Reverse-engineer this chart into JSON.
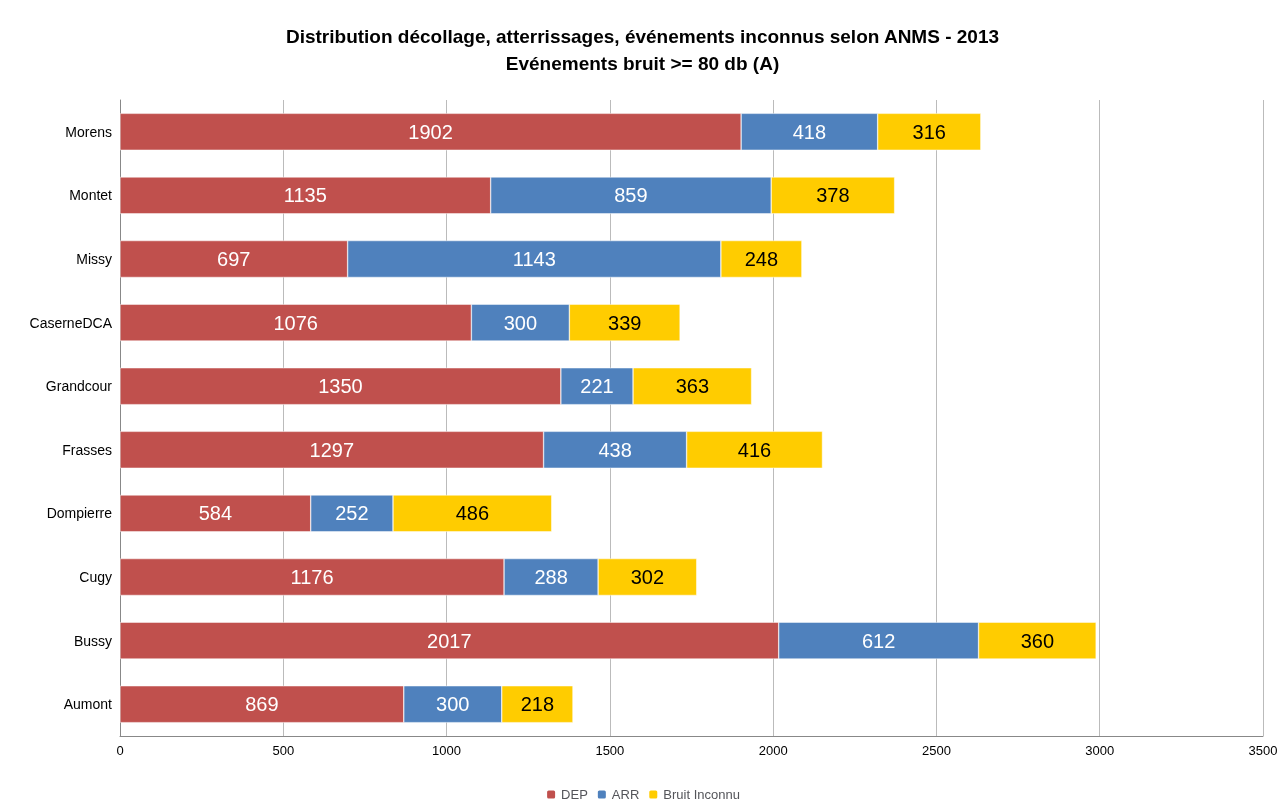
{
  "chart_data": {
    "type": "bar",
    "orientation": "horizontal",
    "stacked": true,
    "title": "Distribution décollage, atterrissages, événements inconnus selon ANMS - 2013",
    "subtitle": "Evénements bruit >= 80 db (A)",
    "categories": [
      "Morens",
      "Montet",
      "Missy",
      "CaserneDCA",
      "Grandcour",
      "Frasses",
      "Dompierre",
      "Cugy",
      "Bussy",
      "Aumont"
    ],
    "series": [
      {
        "name": "DEP",
        "color": "#c0504d",
        "values": [
          1902,
          1135,
          697,
          1076,
          1350,
          1297,
          584,
          1176,
          2017,
          869
        ]
      },
      {
        "name": "ARR",
        "color": "#4f81bd",
        "values": [
          418,
          859,
          1143,
          300,
          221,
          438,
          252,
          288,
          612,
          300
        ]
      },
      {
        "name": "Bruit Inconnu",
        "color": "#ffcc00",
        "values": [
          316,
          378,
          248,
          339,
          363,
          416,
          486,
          302,
          360,
          218
        ]
      }
    ],
    "xlim": [
      0,
      3500
    ],
    "xticks": [
      0,
      500,
      1000,
      1500,
      2000,
      2500,
      3000,
      3500
    ],
    "grid": "x",
    "legend": "bottom",
    "data_labels": true
  }
}
